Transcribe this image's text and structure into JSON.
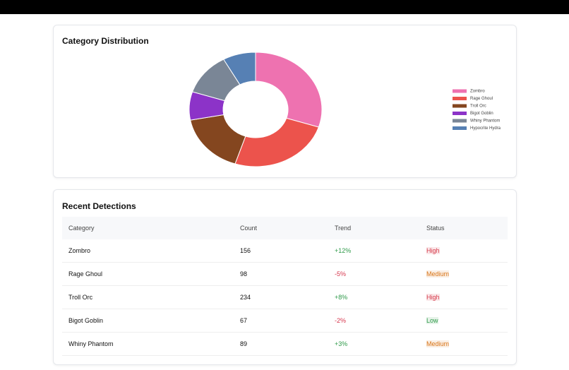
{
  "chart_data": {
    "type": "donut",
    "title": "Category Distribution",
    "categories": [
      "Zombro",
      "Rage Ghoul",
      "Troll Orc",
      "Bigot Goblin",
      "Whiny Phantom",
      "Hypocrite Hydra"
    ],
    "values": [
      30,
      25,
      17,
      8,
      12,
      8
    ],
    "colors": [
      "#ee72b0",
      "#ec534c",
      "#84461f",
      "#8c33c8",
      "#7a8696",
      "#5680b4"
    ],
    "legend": "right"
  },
  "table": {
    "title": "Recent Detections",
    "columns": [
      "Category",
      "Count",
      "Trend",
      "Status"
    ],
    "rows": [
      [
        "Zombro",
        "156",
        "+12%",
        "High"
      ],
      [
        "Rage Ghoul",
        "98",
        "-5%",
        "Medium"
      ],
      [
        "Troll Orc",
        "234",
        "+8%",
        "High"
      ],
      [
        "Bigot Goblin",
        "67",
        "-2%",
        "Low"
      ],
      [
        "Whiny Phantom",
        "89",
        "+3%",
        "Medium"
      ]
    ],
    "status_colors": [
      "#d63a4a",
      "#d9761a",
      "#d63a4a",
      "#2f9a4a",
      "#d9761a"
    ]
  }
}
